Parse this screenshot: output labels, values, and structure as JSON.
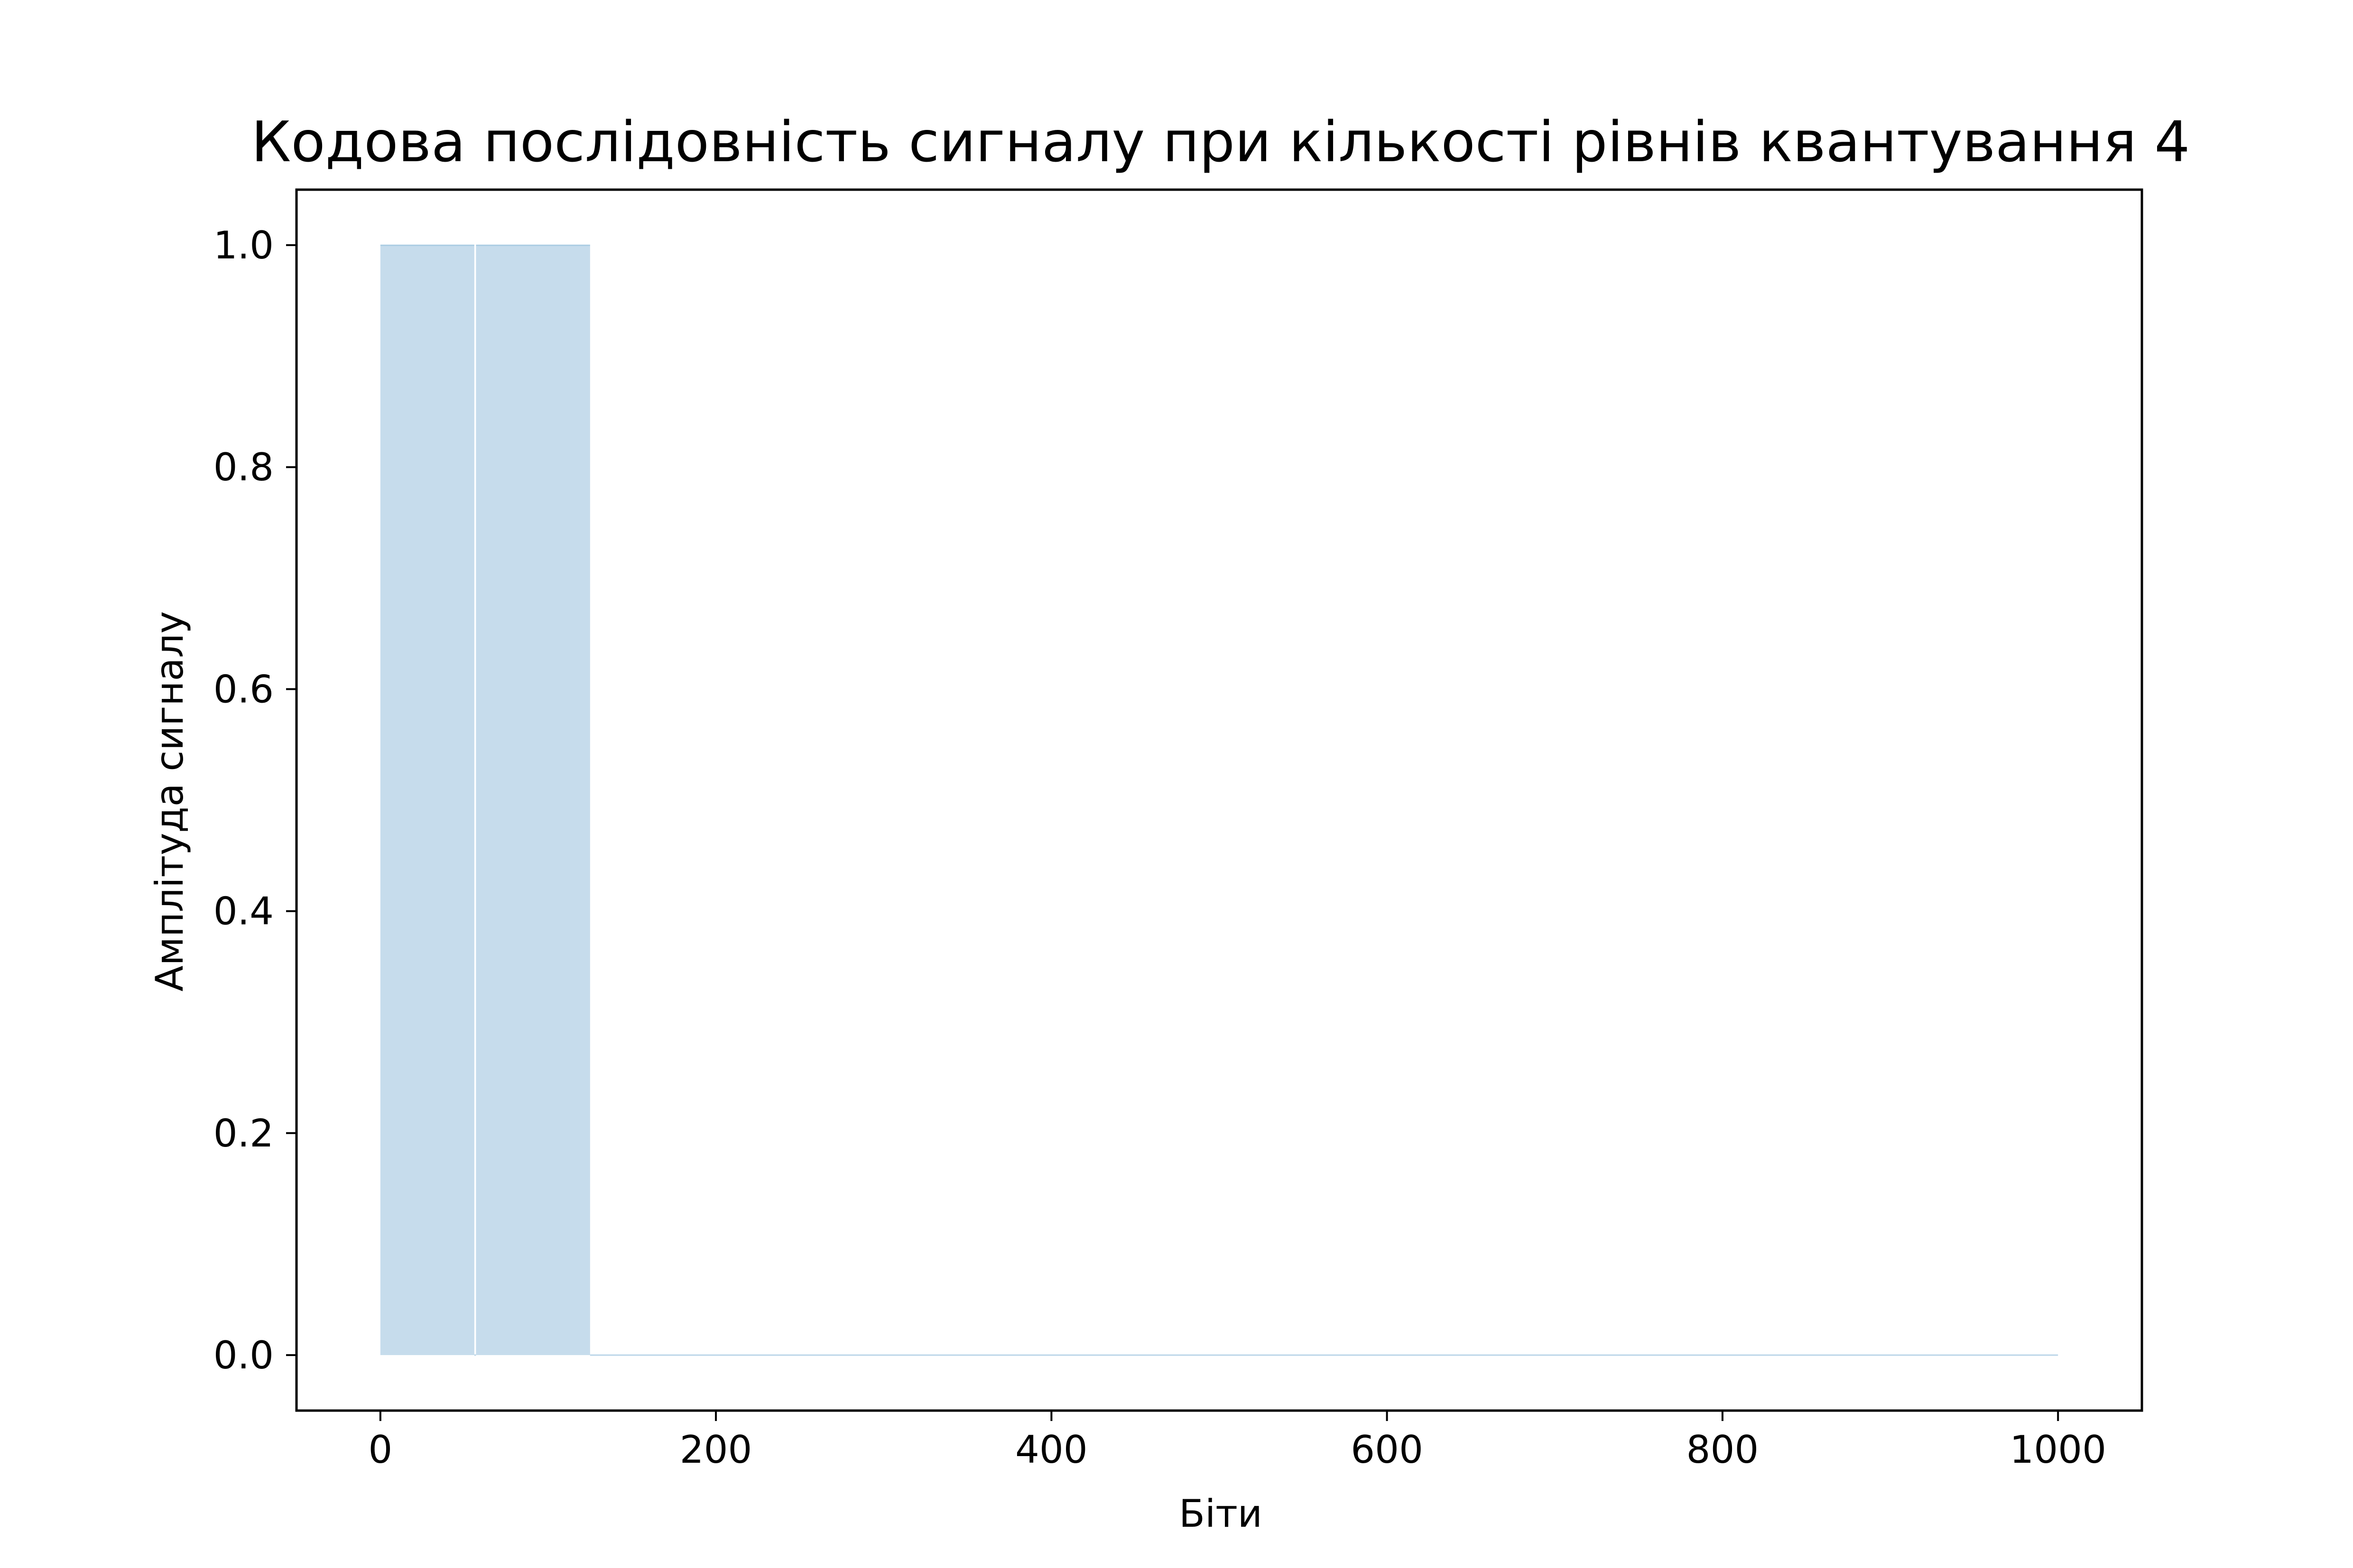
{
  "chart_data": {
    "type": "step-area",
    "title": "Кодова послідовність сигналу при кількості рівнів квантування 4",
    "xlabel": "Біти",
    "ylabel": "Амплітуда сигналу",
    "xlim": [
      -50,
      1050
    ],
    "ylim": [
      -0.05,
      1.05
    ],
    "x_ticks": [
      0,
      200,
      400,
      600,
      800,
      1000
    ],
    "y_ticks": [
      0.0,
      0.2,
      0.4,
      0.6,
      0.8,
      1.0
    ],
    "x_tick_labels": [
      "0",
      "200",
      "400",
      "600",
      "800",
      "1000"
    ],
    "y_tick_labels": [
      "0.0",
      "0.2",
      "0.4",
      "0.6",
      "0.8",
      "1.0"
    ],
    "segments": [
      {
        "x_start": 0,
        "x_end": 56,
        "value": 1
      },
      {
        "x_start": 56,
        "x_end": 57,
        "value": 0
      },
      {
        "x_start": 57,
        "x_end": 125,
        "value": 1
      },
      {
        "x_start": 125,
        "x_end": 1000,
        "value": 0
      }
    ],
    "grid": false,
    "legend": "none",
    "fill_color": "#c6dcec",
    "edge_color": "#1f77b4"
  }
}
